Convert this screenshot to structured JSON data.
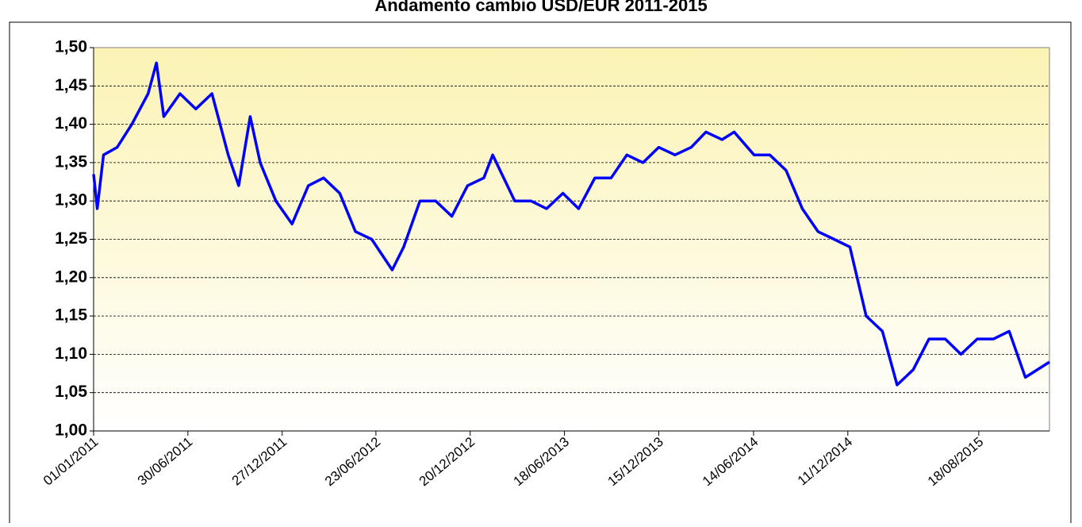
{
  "chart_data": {
    "type": "line",
    "title": "Andamento cambio USD/EUR 2011-2015",
    "x": [
      "01/01/2011",
      "08/01/2011",
      "20/01/2011",
      "15/02/2011",
      "15/03/2011",
      "15/04/2011",
      "01/05/2011",
      "15/05/2011",
      "15/06/2011",
      "15/07/2011",
      "15/08/2011",
      "15/09/2011",
      "05/10/2011",
      "27/10/2011",
      "15/11/2011",
      "15/12/2011",
      "15/01/2012",
      "15/02/2012",
      "15/03/2012",
      "15/04/2012",
      "15/05/2012",
      "15/06/2012",
      "24/07/2012",
      "15/08/2012",
      "15/09/2012",
      "15/10/2012",
      "15/11/2012",
      "15/12/2012",
      "15/01/2013",
      "01/02/2013",
      "15/03/2013",
      "15/04/2013",
      "15/05/2013",
      "15/06/2013",
      "15/07/2013",
      "15/08/2013",
      "15/09/2013",
      "15/10/2013",
      "15/11/2013",
      "15/12/2013",
      "15/01/2014",
      "15/02/2014",
      "15/03/2014",
      "15/04/2014",
      "08/05/2014",
      "15/06/2014",
      "15/07/2014",
      "15/08/2014",
      "15/09/2014",
      "15/10/2014",
      "15/11/2014",
      "15/12/2014",
      "15/01/2015",
      "15/02/2015",
      "15/03/2015",
      "15/04/2015",
      "15/05/2015",
      "15/06/2015",
      "15/07/2015",
      "15/08/2015",
      "15/09/2015",
      "15/10/2015",
      "15/11/2015",
      "31/12/2015"
    ],
    "series": [
      {
        "name": "USD/EUR",
        "color": "#0000ff",
        "values": [
          1.335,
          1.29,
          1.36,
          1.37,
          1.4,
          1.44,
          1.48,
          1.41,
          1.44,
          1.42,
          1.44,
          1.36,
          1.32,
          1.41,
          1.35,
          1.3,
          1.27,
          1.32,
          1.33,
          1.31,
          1.26,
          1.25,
          1.21,
          1.24,
          1.3,
          1.3,
          1.28,
          1.32,
          1.33,
          1.36,
          1.3,
          1.3,
          1.29,
          1.31,
          1.29,
          1.33,
          1.33,
          1.36,
          1.35,
          1.37,
          1.36,
          1.37,
          1.39,
          1.38,
          1.39,
          1.36,
          1.36,
          1.34,
          1.29,
          1.26,
          1.25,
          1.24,
          1.15,
          1.13,
          1.06,
          1.08,
          1.12,
          1.12,
          1.1,
          1.12,
          1.12,
          1.13,
          1.07,
          1.09
        ]
      }
    ],
    "xlim": [
      "01/01/2011",
      "31/12/2015"
    ],
    "xticks": [
      "01/01/2011",
      "30/06/2011",
      "27/12/2011",
      "23/06/2012",
      "20/12/2012",
      "18/06/2013",
      "15/12/2013",
      "14/06/2014",
      "11/12/2014",
      "18/08/2015"
    ],
    "ylim": [
      1.0,
      1.5
    ],
    "yticks": [
      {
        "value": 1.0,
        "label": "1,00"
      },
      {
        "value": 1.05,
        "label": "1,05"
      },
      {
        "value": 1.1,
        "label": "1,10"
      },
      {
        "value": 1.15,
        "label": "1,15"
      },
      {
        "value": 1.2,
        "label": "1,20"
      },
      {
        "value": 1.25,
        "label": "1,25"
      },
      {
        "value": 1.3,
        "label": "1,30"
      },
      {
        "value": 1.35,
        "label": "1,35"
      },
      {
        "value": 1.4,
        "label": "1,40"
      },
      {
        "value": 1.45,
        "label": "1,45"
      },
      {
        "value": 1.5,
        "label": "1,50"
      }
    ],
    "grid": true
  }
}
